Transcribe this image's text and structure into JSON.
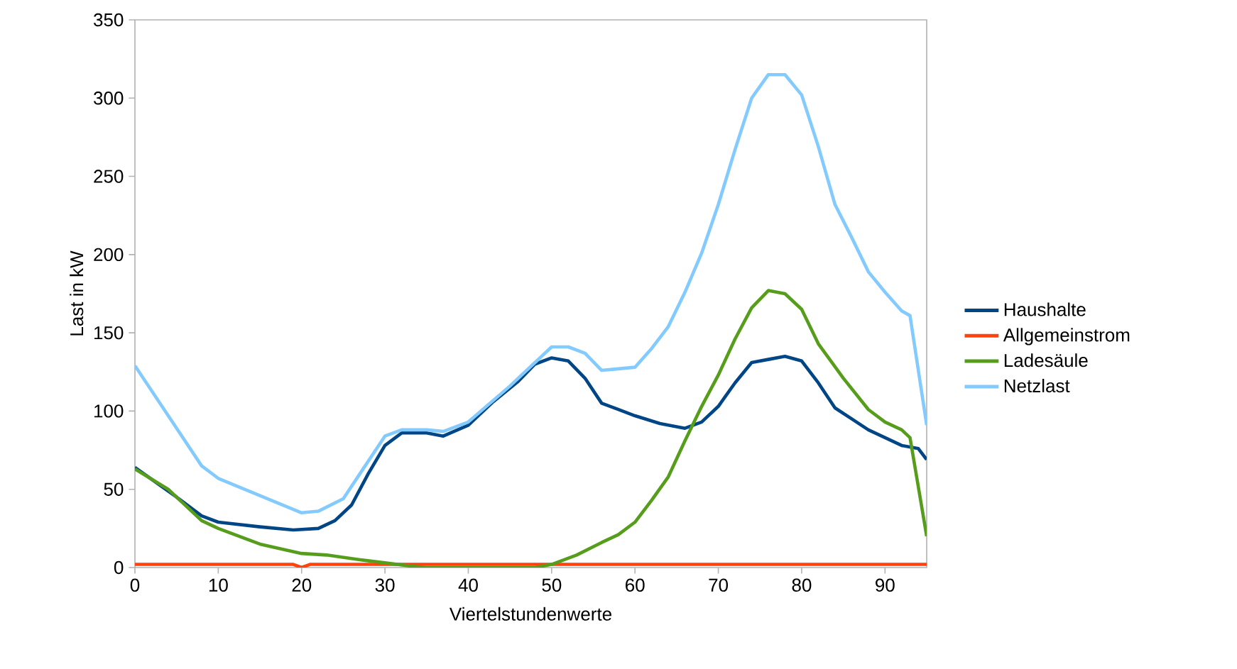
{
  "chart_data": {
    "type": "line",
    "xlabel": "Viertelstundenwerte",
    "ylabel": "Last in kW",
    "xlim": [
      0,
      95
    ],
    "ylim": [
      0,
      350
    ],
    "xticks": [
      0,
      10,
      20,
      30,
      40,
      50,
      60,
      70,
      80,
      90
    ],
    "yticks": [
      0,
      50,
      100,
      150,
      200,
      250,
      300,
      350
    ],
    "legend": "right",
    "series": [
      {
        "name": "Haushalte",
        "color": "#004586",
        "x": [
          0,
          5,
          8,
          10,
          15,
          19,
          22,
          24,
          26,
          28,
          30,
          32,
          35,
          37,
          40,
          43,
          46,
          48,
          50,
          52,
          54,
          56,
          58,
          60,
          63,
          66,
          68,
          70,
          72,
          74,
          76,
          78,
          80,
          82,
          84,
          86,
          88,
          90,
          92,
          94,
          95
        ],
        "values": [
          64,
          45,
          33,
          29,
          26,
          24,
          25,
          30,
          40,
          60,
          78,
          86,
          86,
          84,
          91,
          106,
          119,
          130,
          134,
          132,
          121,
          105,
          101,
          97,
          92,
          89,
          93,
          103,
          118,
          131,
          133,
          135,
          132,
          118,
          102,
          95,
          88,
          83,
          78,
          76,
          69
        ]
      },
      {
        "name": "Allgemeinstrom",
        "color": "#ff420e",
        "x": [
          0,
          19,
          20,
          21,
          95
        ],
        "values": [
          2,
          2,
          0,
          2,
          2
        ]
      },
      {
        "name": "Ladesäule",
        "color": "#579d1c",
        "x": [
          0,
          4,
          8,
          10,
          15,
          20,
          23,
          27,
          30,
          33,
          35,
          40,
          45,
          48,
          50,
          53,
          56,
          58,
          60,
          62,
          64,
          66,
          68,
          70,
          72,
          74,
          76,
          78,
          80,
          82,
          85,
          88,
          90,
          92,
          93,
          95
        ],
        "values": [
          63,
          50,
          30,
          25,
          15,
          9,
          8,
          5,
          3,
          1,
          0,
          0,
          0,
          0,
          2,
          8,
          16,
          21,
          29,
          43,
          58,
          81,
          103,
          123,
          146,
          166,
          177,
          175,
          165,
          143,
          121,
          101,
          93,
          88,
          83,
          20
        ]
      },
      {
        "name": "Netzlast",
        "color": "#83caff",
        "x": [
          0,
          8,
          10,
          15,
          20,
          22,
          25,
          28,
          30,
          32,
          35,
          37,
          40,
          45,
          48,
          50,
          52,
          54,
          56,
          58,
          60,
          62,
          64,
          66,
          68,
          70,
          72,
          74,
          76,
          78,
          80,
          82,
          84,
          86,
          88,
          90,
          92,
          93,
          95
        ],
        "values": [
          129,
          65,
          57,
          46,
          35,
          36,
          44,
          68,
          84,
          88,
          88,
          87,
          93,
          116,
          131,
          141,
          141,
          137,
          126,
          127,
          128,
          140,
          154,
          176,
          201,
          232,
          267,
          300,
          315,
          315,
          302,
          269,
          232,
          211,
          189,
          176,
          164,
          161,
          91
        ]
      }
    ]
  }
}
